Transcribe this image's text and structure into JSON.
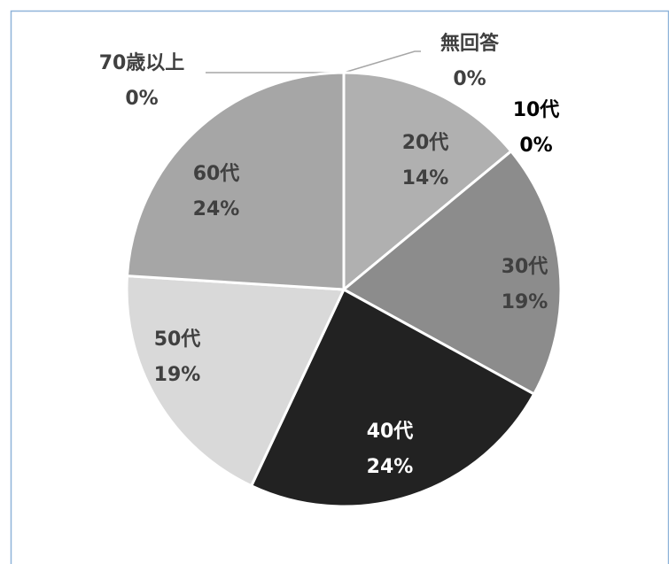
{
  "chart_data": {
    "type": "pie",
    "categories": [
      "無回答",
      "10代",
      "20代",
      "30代",
      "40代",
      "50代",
      "60代",
      "70歳以上"
    ],
    "values": [
      0,
      0,
      14,
      19,
      24,
      19,
      24,
      0
    ],
    "value_labels": [
      "0%",
      "0%",
      "14%",
      "19%",
      "24%",
      "19%",
      "24%",
      "0%"
    ],
    "colors": [
      "#bfbfbf",
      "#7f7f7f",
      "#b0b0b0",
      "#8c8c8c",
      "#222222",
      "#d9d9d9",
      "#a6a6a6",
      "#999999"
    ]
  }
}
